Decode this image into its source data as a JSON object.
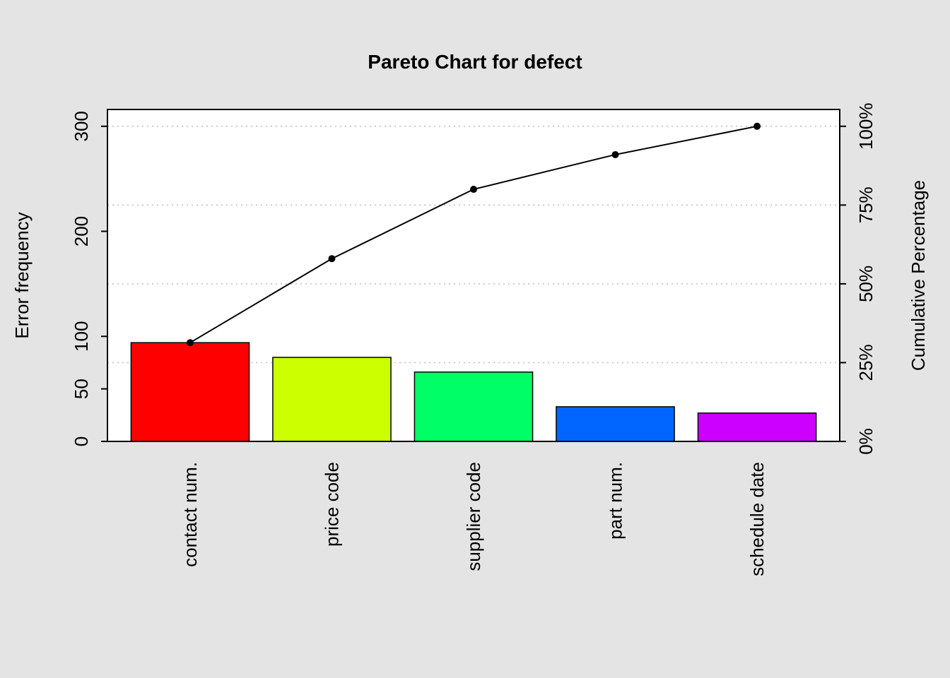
{
  "title": "Pareto Chart for defect",
  "colors": {
    "page_background": "#E4E4E4",
    "plot_background": "#FFFFFF",
    "axis": "#000000",
    "gridline": "#BEBEBE",
    "cumulative_line": "#000000",
    "cumulative_point": "#000000"
  },
  "chart_data": {
    "type": "bar",
    "subtype": "pareto",
    "title": "Pareto Chart for defect",
    "categories": [
      "contact num.",
      "price code",
      "supplier code",
      "part num.",
      "schedule date"
    ],
    "values": [
      94,
      80,
      66,
      33,
      27
    ],
    "total": 300,
    "cumulative": [
      94,
      174,
      240,
      273,
      300
    ],
    "cumulative_percentage": [
      31.3,
      58.0,
      80.0,
      91.0,
      100.0
    ],
    "bar_colors": [
      "#FF0000",
      "#CCFF00",
      "#00FF66",
      "#0066FF",
      "#CC00FF"
    ],
    "ylabel_left": "Error frequency",
    "ylabel_right": "Cumulative Percentage",
    "left_axis": {
      "ticks": [
        0,
        50,
        100,
        200,
        300
      ],
      "tick_labels": [
        "0",
        "50",
        "100",
        "200",
        "300"
      ],
      "max": 316
    },
    "right_axis": {
      "ticks": [
        0,
        75,
        150,
        225,
        300
      ],
      "tick_labels": [
        "0%",
        "25%",
        "50%",
        "75%",
        "100%"
      ]
    },
    "gridlines": {
      "values": [
        75,
        150,
        225,
        300
      ],
      "style": "dotted"
    },
    "legend": "none",
    "grid": "on"
  }
}
